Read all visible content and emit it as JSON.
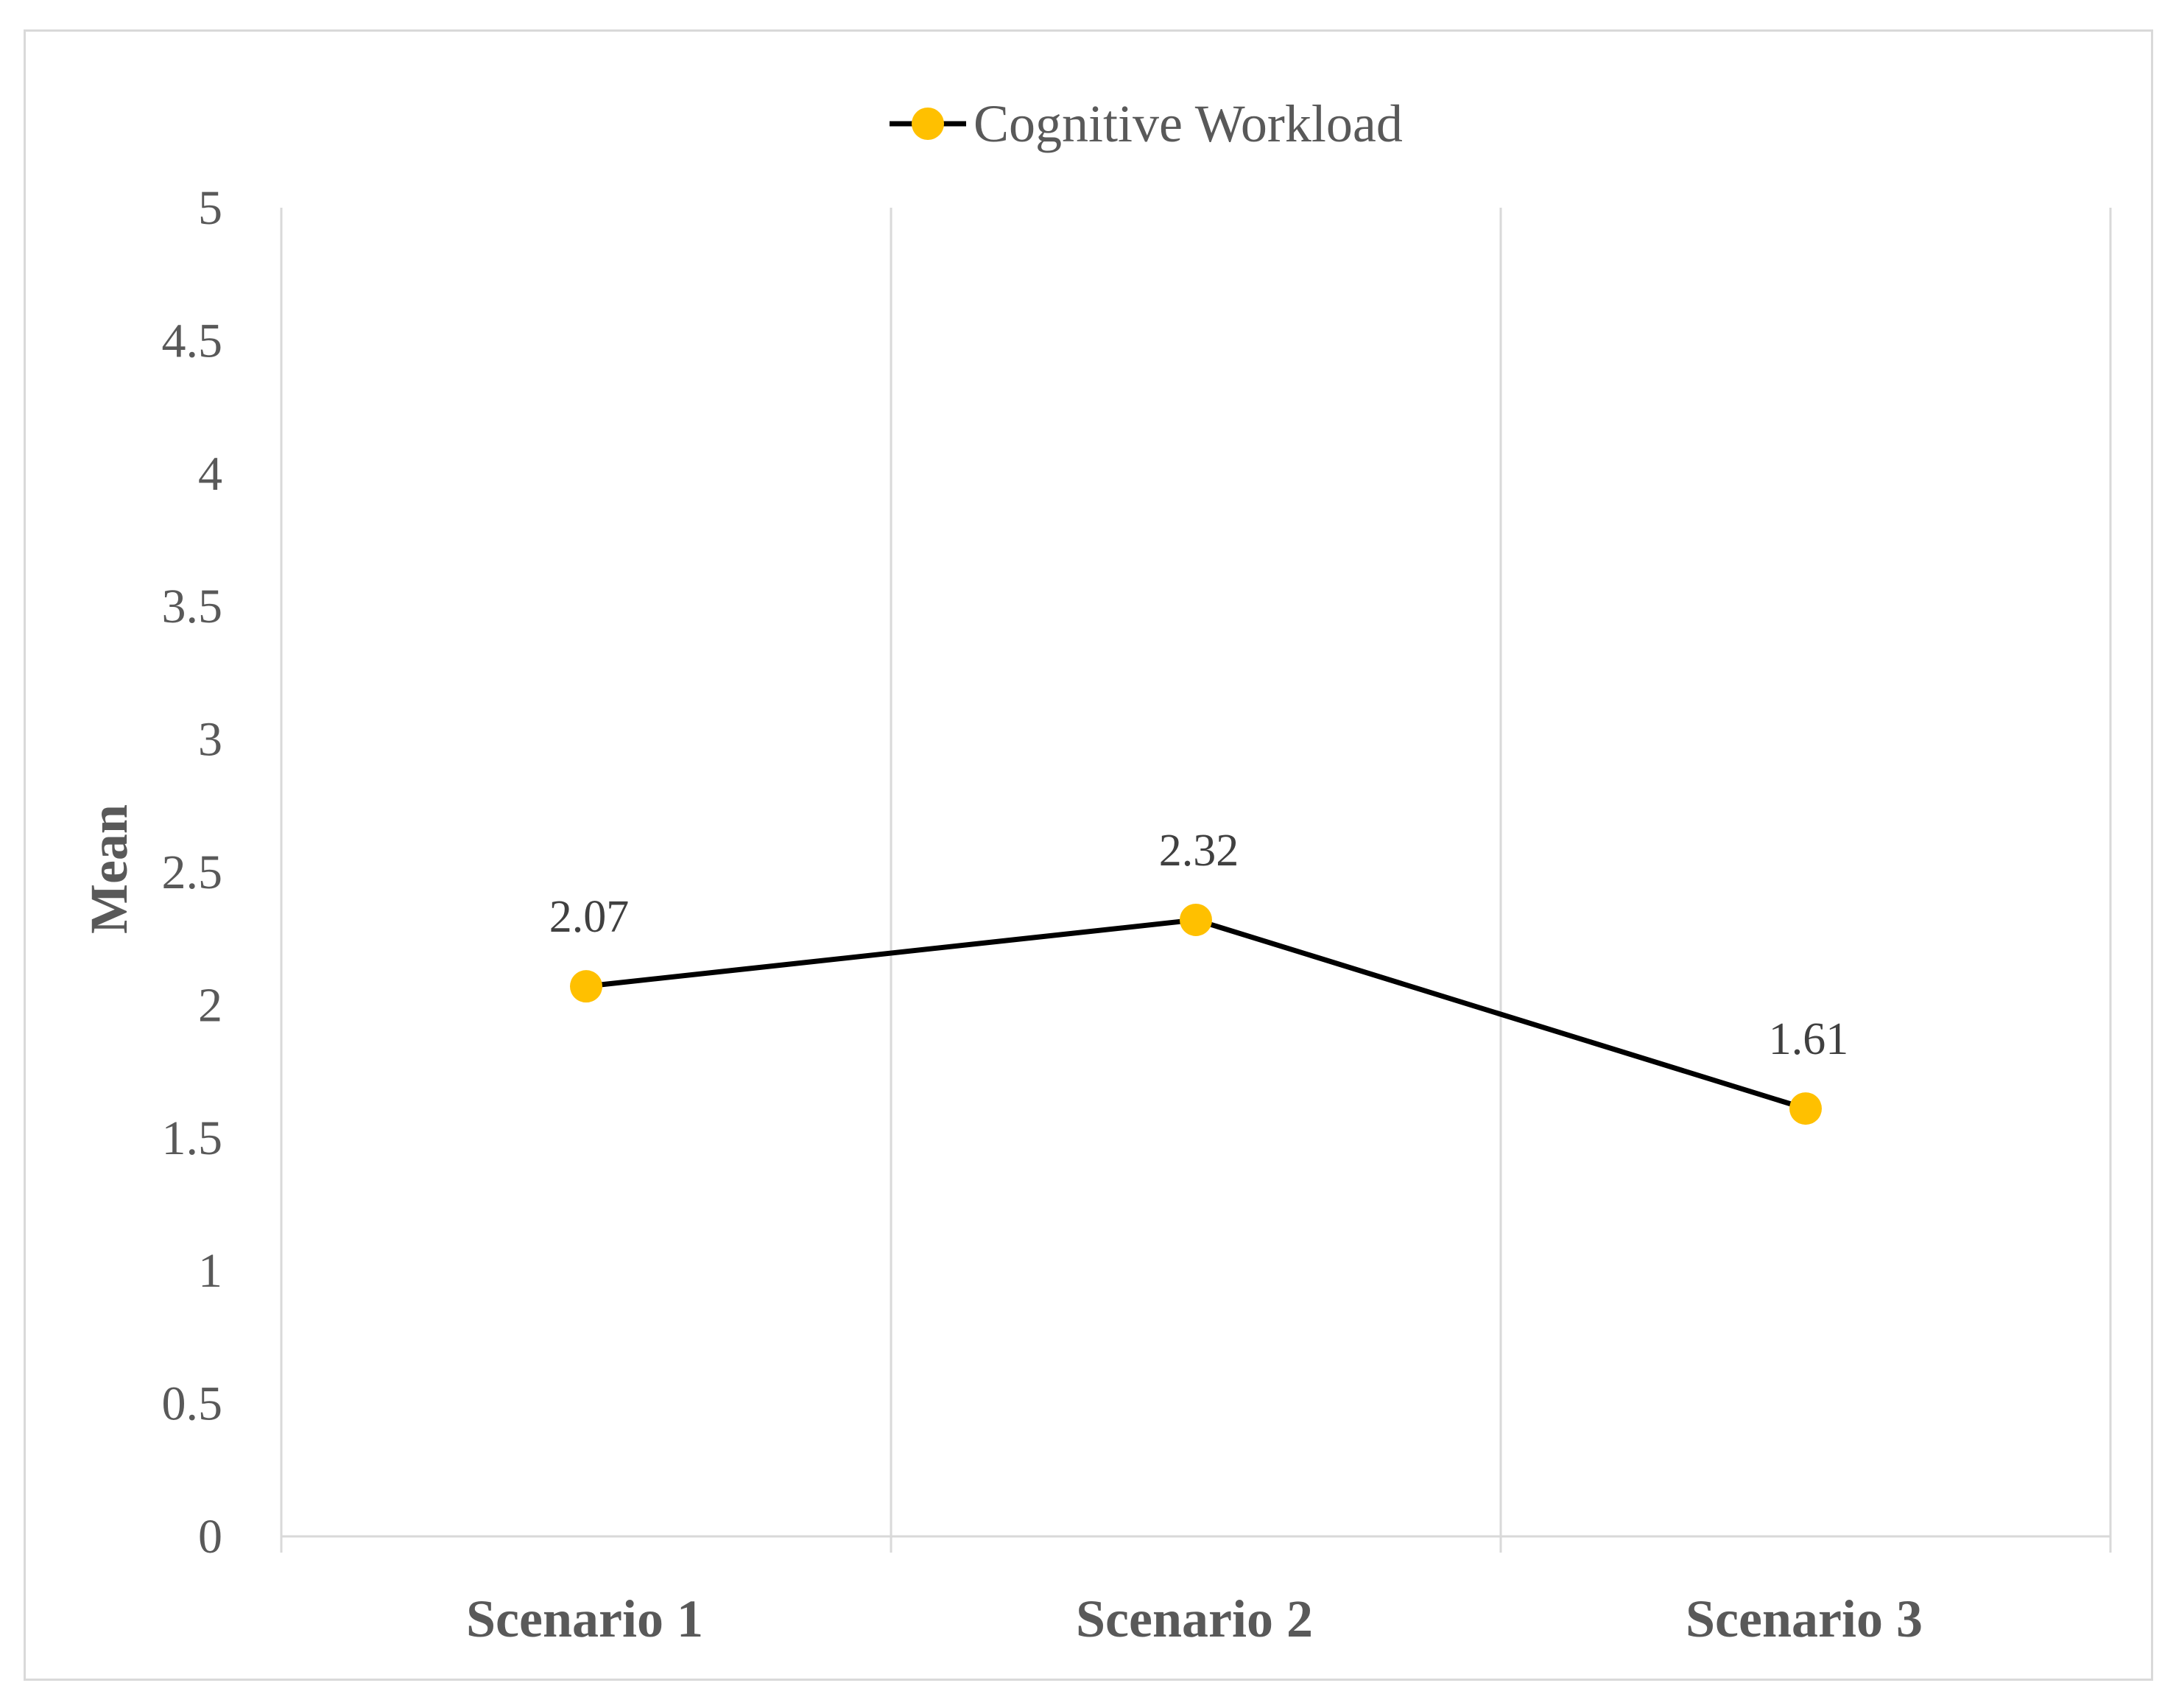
{
  "chart_data": {
    "type": "line",
    "categories": [
      "Scenario 1",
      "Scenario 2",
      "Scenario 3"
    ],
    "series": [
      {
        "name": "Cognitive Workload",
        "values": [
          2.07,
          2.32,
          1.61
        ],
        "data_labels": [
          "2.07",
          "2.32",
          "1.61"
        ],
        "line_color": "#000000",
        "marker_color": "#FFC000"
      }
    ],
    "title": "",
    "xlabel": "",
    "ylabel": "Mean",
    "ylim": [
      0,
      5
    ],
    "y_ticks": [
      0,
      0.5,
      1,
      1.5,
      2,
      2.5,
      3,
      3.5,
      4,
      4.5,
      5
    ],
    "y_tick_labels": [
      "0",
      "0.5",
      "1",
      "1.5",
      "2",
      "2.5",
      "3",
      "3.5",
      "4",
      "4.5",
      "5"
    ],
    "grid": "vertical",
    "legend_position": "top-center",
    "gridline_color": "#d9d9d9",
    "text_color": "#595959"
  }
}
